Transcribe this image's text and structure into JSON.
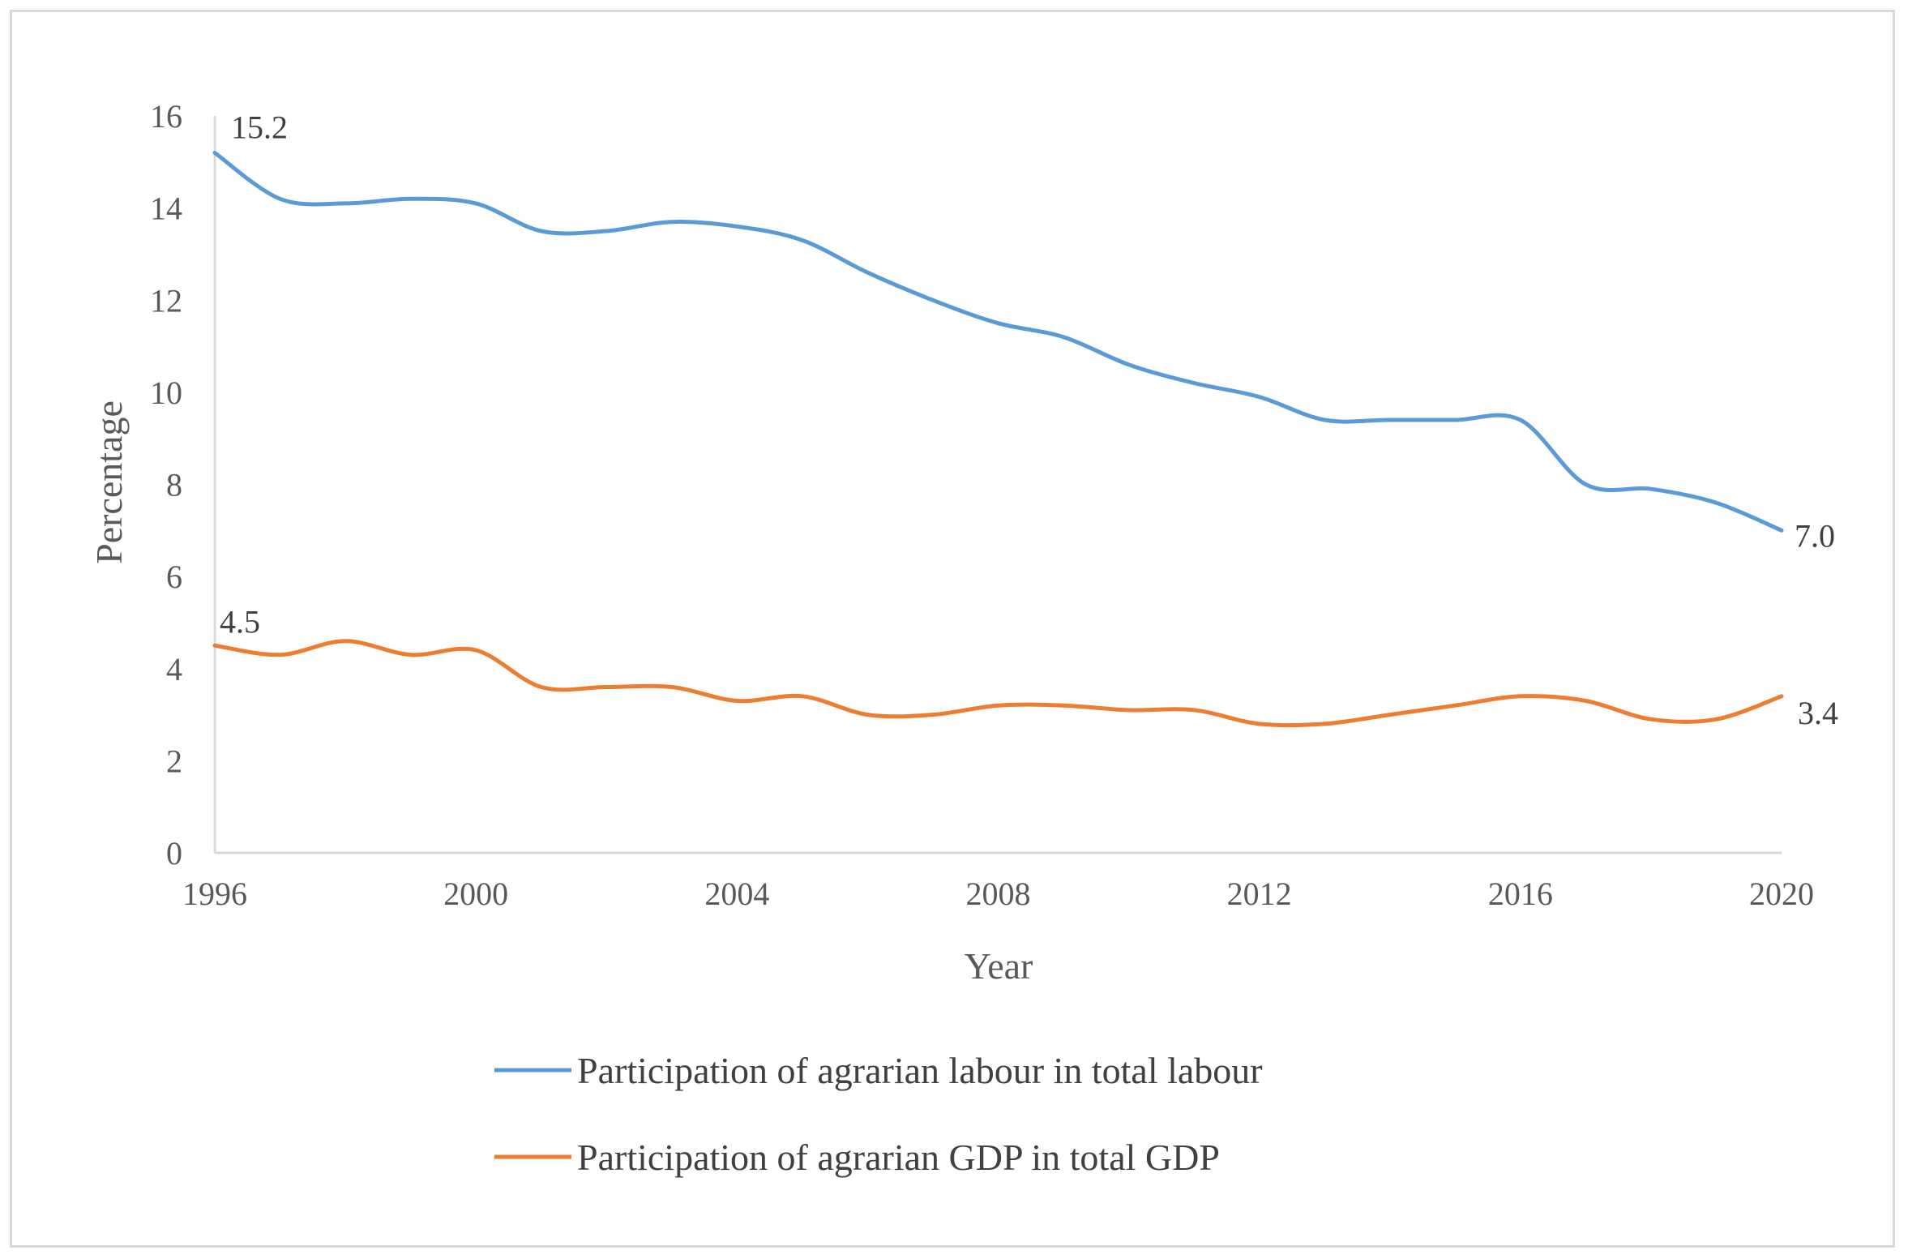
{
  "chart_data": {
    "type": "line",
    "title": "",
    "xlabel": "Year",
    "ylabel": "Percentage",
    "xlim": [
      1996,
      2020
    ],
    "ylim": [
      0,
      16
    ],
    "xticks": [
      1996,
      2000,
      2004,
      2008,
      2012,
      2016,
      2020
    ],
    "yticks": [
      0,
      2,
      4,
      6,
      8,
      10,
      12,
      14,
      16
    ],
    "grid": false,
    "legend_position": "bottom",
    "x": [
      1996,
      1997,
      1998,
      1999,
      2000,
      2001,
      2002,
      2003,
      2004,
      2005,
      2006,
      2007,
      2008,
      2009,
      2010,
      2011,
      2012,
      2013,
      2014,
      2015,
      2016,
      2017,
      2018,
      2019,
      2020
    ],
    "series": [
      {
        "name": "Participation of agrarian labour in total labour",
        "color": "#5b9bd5",
        "values": [
          15.2,
          14.2,
          14.1,
          14.2,
          14.1,
          13.5,
          13.5,
          13.7,
          13.6,
          13.3,
          12.6,
          12.0,
          11.5,
          11.2,
          10.6,
          10.2,
          9.9,
          9.4,
          9.4,
          9.4,
          9.4,
          8.0,
          7.9,
          7.6,
          7.0
        ],
        "end_labels": {
          "first": "15.2",
          "last": "7.0"
        }
      },
      {
        "name": "Participation of agrarian GDP in total GDP",
        "color": "#ed7d31",
        "values": [
          4.5,
          4.3,
          4.6,
          4.3,
          4.4,
          3.6,
          3.6,
          3.6,
          3.3,
          3.4,
          3.0,
          3.0,
          3.2,
          3.2,
          3.1,
          3.1,
          2.8,
          2.8,
          3.0,
          3.2,
          3.4,
          3.3,
          2.9,
          2.9,
          3.4
        ],
        "end_labels": {
          "first": "4.5",
          "last": "3.4"
        }
      }
    ]
  }
}
